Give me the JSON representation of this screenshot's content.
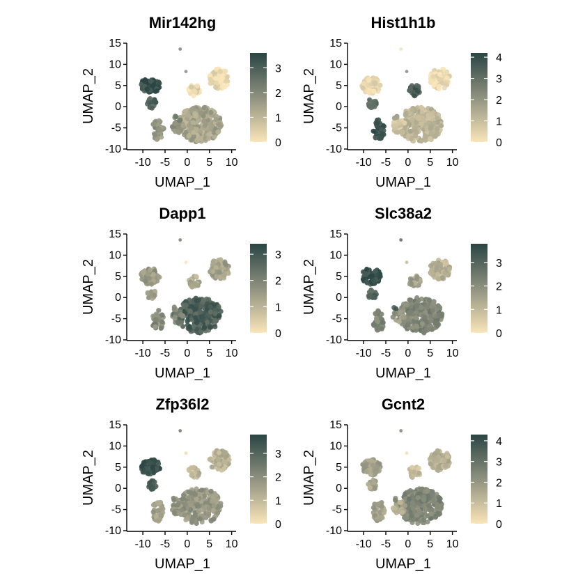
{
  "chart_data": [
    {
      "type": "scatter",
      "title": "Mir142hg",
      "xlabel": "UMAP_1",
      "ylabel": "UMAP_2",
      "xlim": [
        -13,
        11
      ],
      "ylim": [
        -10,
        15
      ],
      "xticks": [
        -10,
        -5,
        0,
        5,
        10
      ],
      "yticks": [
        -10,
        -5,
        0,
        5,
        10,
        15
      ],
      "colorbar": {
        "min": 0,
        "max": 3.6,
        "ticks": [
          0,
          1,
          2,
          3
        ]
      },
      "cluster_expression": {
        "A": 3.4,
        "B": 2.9,
        "C": 1.8,
        "D": 1.4,
        "E": 1.8,
        "F": 0.2,
        "G": 0.4,
        "H": 1.8,
        "I": 2.0,
        "J": 2.2
      }
    },
    {
      "type": "scatter",
      "title": "Hist1h1b",
      "xlabel": "UMAP_1",
      "ylabel": "UMAP_2",
      "xlim": [
        -13,
        11
      ],
      "ylim": [
        -10,
        15
      ],
      "xticks": [
        -10,
        -5,
        0,
        5,
        10
      ],
      "yticks": [
        -10,
        -5,
        0,
        5,
        10,
        15
      ],
      "colorbar": {
        "min": 0,
        "max": 4.2,
        "ticks": [
          0,
          1,
          2,
          3,
          4
        ]
      },
      "cluster_expression": {
        "A": 0.3,
        "B": 3.0,
        "C": 3.9,
        "D": 1.2,
        "E": 0.8,
        "F": 0.3,
        "G": 3.6,
        "H": 0.4,
        "I": 2.4,
        "J": 2.0
      }
    },
    {
      "type": "scatter",
      "title": "Dapp1",
      "xlabel": "UMAP_1",
      "ylabel": "UMAP_2",
      "xlim": [
        -13,
        11
      ],
      "ylim": [
        -10,
        15
      ],
      "xticks": [
        -10,
        -5,
        0,
        5,
        10
      ],
      "yticks": [
        -10,
        -5,
        0,
        5,
        10,
        15
      ],
      "colorbar": {
        "min": 0,
        "max": 3.4,
        "ticks": [
          0,
          1,
          2,
          3
        ]
      },
      "cluster_expression": {
        "A": 1.5,
        "B": 1.4,
        "C": 1.9,
        "D": 2.8,
        "E": 2.1,
        "F": 1.4,
        "G": 1.2,
        "H": 2.2,
        "I": 0.2,
        "J": 1.8
      }
    },
    {
      "type": "scatter",
      "title": "Slc38a2",
      "xlabel": "UMAP_1",
      "ylabel": "UMAP_2",
      "xlim": [
        -13,
        11
      ],
      "ylim": [
        -10,
        15
      ],
      "xticks": [
        -10,
        -5,
        0,
        5,
        10
      ],
      "yticks": [
        -10,
        -5,
        0,
        5,
        10,
        15
      ],
      "colorbar": {
        "min": 0,
        "max": 3.8,
        "ticks": [
          0,
          1,
          2,
          3
        ]
      },
      "cluster_expression": {
        "A": 3.6,
        "B": 3.0,
        "C": 2.2,
        "D": 2.2,
        "E": 1.7,
        "F": 1.2,
        "G": 1.6,
        "H": 2.8,
        "I": 1.2,
        "J": 3.0
      }
    },
    {
      "type": "scatter",
      "title": "Zfp36l2",
      "xlabel": "UMAP_1",
      "ylabel": "UMAP_2",
      "xlim": [
        -13,
        11
      ],
      "ylim": [
        -10,
        15
      ],
      "xticks": [
        -10,
        -5,
        0,
        5,
        10
      ],
      "yticks": [
        -10,
        -5,
        0,
        5,
        10,
        15
      ],
      "colorbar": {
        "min": 0,
        "max": 3.8,
        "ticks": [
          0,
          1,
          2,
          3
        ]
      },
      "cluster_expression": {
        "A": 3.5,
        "B": 3.2,
        "C": 1.5,
        "D": 1.8,
        "E": 1.8,
        "F": 1.2,
        "G": 1.2,
        "H": 2.4,
        "I": 0.6,
        "J": 1.8
      }
    },
    {
      "type": "scatter",
      "title": "Gcnt2",
      "xlabel": "UMAP_1",
      "ylabel": "UMAP_2",
      "xlim": [
        -13,
        11
      ],
      "ylim": [
        -10,
        15
      ],
      "xticks": [
        -10,
        -5,
        0,
        5,
        10
      ],
      "yticks": [
        -10,
        -5,
        0,
        5,
        10,
        15
      ],
      "colorbar": {
        "min": 0,
        "max": 4.3,
        "ticks": [
          0,
          1,
          2,
          3,
          4
        ]
      },
      "cluster_expression": {
        "A": 1.8,
        "B": 1.6,
        "C": 1.8,
        "D": 2.5,
        "E": 1.4,
        "F": 1.4,
        "G": 1.0,
        "H": 2.0,
        "I": 0.4,
        "J": 2.2
      }
    }
  ],
  "colors": {
    "low": "#fae5b9",
    "mid": "#8f917f",
    "high": "#2a4544"
  }
}
